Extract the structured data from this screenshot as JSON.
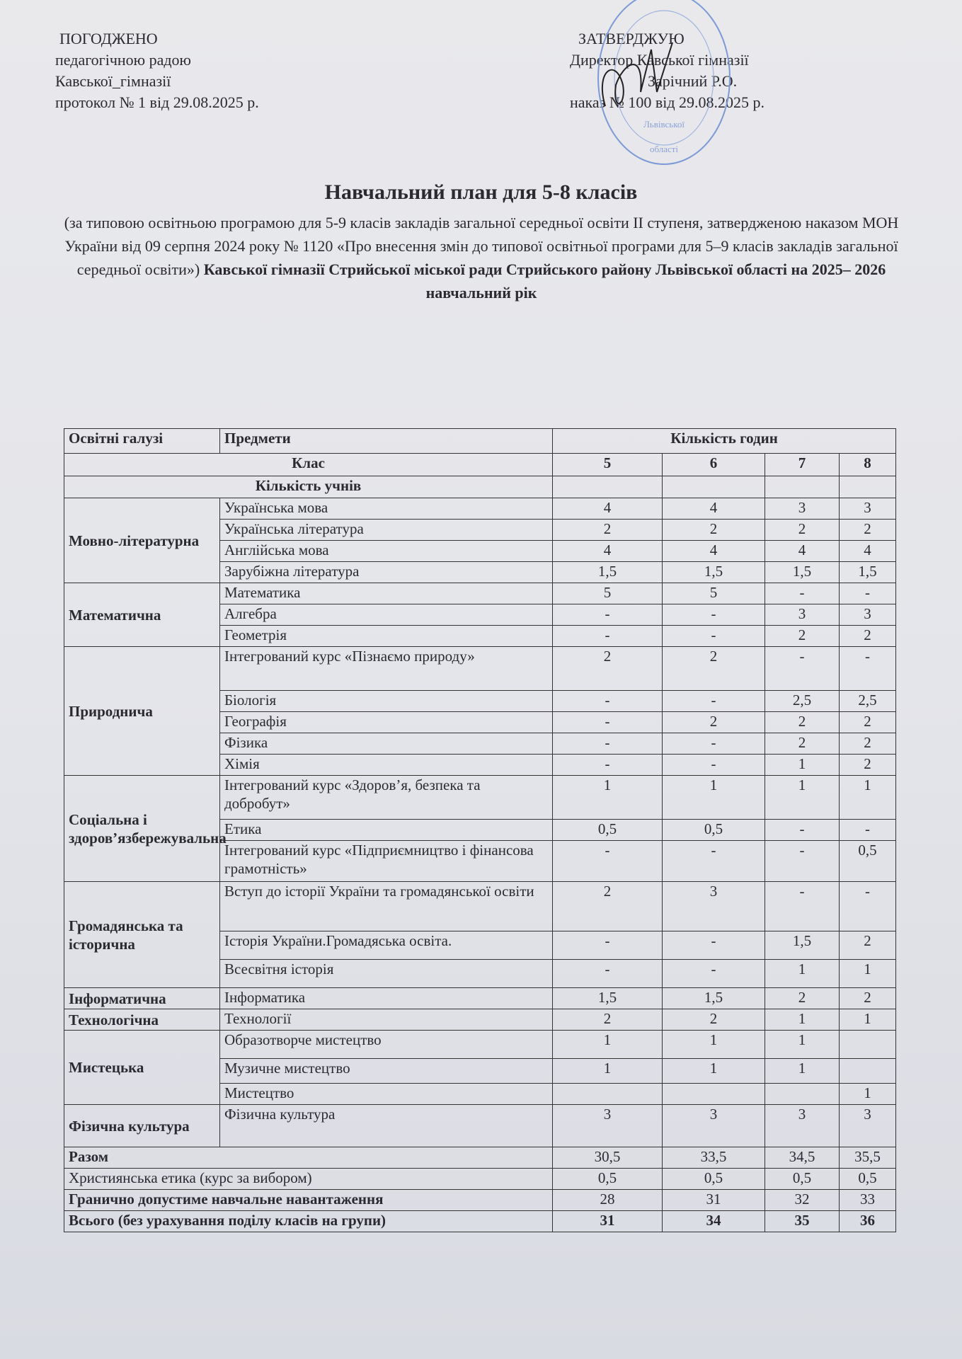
{
  "left_block": {
    "line1": "ПОГОДЖЕНО",
    "line2": "педагогічною    радою",
    "line3": "Кавської_гімназії",
    "line4": "протокол № 1  від 29.08.2025 р."
  },
  "right_block": {
    "line1": "ЗАТВЕРДЖУЮ",
    "line2": "Директор Кавської гімназії",
    "line3": "Зарічний Р.О.",
    "line4": "наказ № 100    від 29.08.2025 р."
  },
  "stamp": {
    "text": "Львівської області",
    "color": "#6f8fd0"
  },
  "title": "Навчальний  план   для 5-8 класів",
  "subtitle_plain": "(за типовою освітньою програмою для 5-9 класів закладів загальної середньої освіти ІІ ступеня, затвердженою наказом МОН України від 09 серпня 2024 року № 1120 «Про внесення змін до типової освітньої програми для 5–9 класів закладів загальної середньої освіти»)",
  "subtitle_bold": "Кавської гімназії Стрийської міської ради Стрийського району Львівської області на 2025– 2026  навчальний рік",
  "table": {
    "h_area": "Освітні галузі",
    "h_subject": "Предмети",
    "h_hours": "Кількість годин",
    "h_class": "Клас",
    "classes": [
      "5",
      "6",
      "7",
      "8"
    ],
    "h_students": "Кількість учнів",
    "groups": [
      {
        "area": "Мовно-літературна",
        "rows": [
          {
            "subject": "Українська мова",
            "v": [
              "4",
              "4",
              "3",
              "3"
            ]
          },
          {
            "subject": "Українська література",
            "v": [
              "2",
              "2",
              "2",
              "2"
            ]
          },
          {
            "subject": "Англійська мова",
            "v": [
              "4",
              "4",
              "4",
              "4"
            ]
          },
          {
            "subject": "Зарубіжна література",
            "v": [
              "1,5",
              "1,5",
              "1,5",
              "1,5"
            ]
          }
        ]
      },
      {
        "area": "Математична",
        "rows": [
          {
            "subject": "Математика",
            "v": [
              "5",
              "5",
              "-",
              "-"
            ]
          },
          {
            "subject": "Алгебра",
            "v": [
              "-",
              "-",
              "3",
              "3"
            ]
          },
          {
            "subject": "Геометрія",
            "v": [
              "-",
              "-",
              "2",
              "2"
            ]
          }
        ]
      },
      {
        "area": "Природнича",
        "rows": [
          {
            "subject": "Інтегрований курс «Пізнаємо природу»",
            "v": [
              "2",
              "2",
              "-",
              "-"
            ]
          },
          {
            "subject": "Біологія",
            "v": [
              "-",
              "-",
              "2,5",
              "2,5"
            ]
          },
          {
            "subject": "Географія",
            "v": [
              "-",
              "2",
              "2",
              "2"
            ]
          },
          {
            "subject": "Фізика",
            "v": [
              "-",
              "-",
              "2",
              "2"
            ]
          },
          {
            "subject": "Хімія",
            "v": [
              "-",
              "-",
              "1",
              "2"
            ]
          }
        ]
      },
      {
        "area": "Соціальна і здоров’язбережувальна",
        "rows": [
          {
            "subject": "Інтегрований курс «Здоров’я, безпека та добробут»",
            "v": [
              "1",
              "1",
              "1",
              "1"
            ]
          },
          {
            "subject": "Етика",
            "v": [
              "0,5",
              "0,5",
              "-",
              "-"
            ]
          },
          {
            "subject": "Інтегрований курс «Підприємництво і фінансова грамотність»",
            "v": [
              "-",
              "-",
              "-",
              "0,5"
            ]
          }
        ]
      },
      {
        "area": "Громадянська та історична",
        "rows": [
          {
            "subject": "Вступ до історії України та громадянської  освіти",
            "v": [
              "2",
              "3",
              "-",
              "-"
            ]
          },
          {
            "subject": "Історія України.Громадяська освіта.",
            "v": [
              "-",
              "-",
              "1,5",
              "2"
            ]
          },
          {
            "subject": "Всесвітня історія",
            "v": [
              "-",
              "-",
              "1",
              "1"
            ]
          }
        ]
      },
      {
        "area": "Інформатична",
        "rows": [
          {
            "subject": "Інформатика",
            "v": [
              "1,5",
              "1,5",
              "2",
              "2"
            ]
          }
        ]
      },
      {
        "area": "Технологічна",
        "rows": [
          {
            "subject": "Технології",
            "v": [
              "2",
              "2",
              "1",
              "1"
            ]
          }
        ]
      },
      {
        "area": "Мистецька",
        "rows": [
          {
            "subject": "Образотворче мистецтво",
            "v": [
              "1",
              "1",
              "1",
              ""
            ]
          },
          {
            "subject": "Музичне мистецтво",
            "v": [
              "1",
              "1",
              "1",
              ""
            ]
          },
          {
            "subject": "Мистецтво",
            "v": [
              "",
              "",
              "",
              "1"
            ]
          }
        ]
      },
      {
        "area": "Фізична культура",
        "rows": [
          {
            "subject": "Фізична культура",
            "v": [
              "3",
              "3",
              "3",
              "3"
            ]
          }
        ]
      }
    ],
    "totals": [
      {
        "label": "Разом",
        "v": [
          "30,5",
          "33,5",
          "34,5",
          "35,5"
        ],
        "bold_label": true,
        "bold_vals": false
      },
      {
        "label": "Християнська етика (курс за вибором)",
        "v": [
          "0,5",
          "0,5",
          "0,5",
          "0,5"
        ],
        "bold_label": false,
        "bold_vals": false
      },
      {
        "label": "Гранично допустиме навчальне навантаження",
        "v": [
          "28",
          "31",
          "32",
          "33"
        ],
        "bold_label": true,
        "bold_vals": false
      },
      {
        "label": "Всього (без  урахування поділу класів на групи)",
        "v": [
          "31",
          "34",
          "35",
          "36"
        ],
        "bold_label": true,
        "bold_vals": true
      }
    ]
  }
}
